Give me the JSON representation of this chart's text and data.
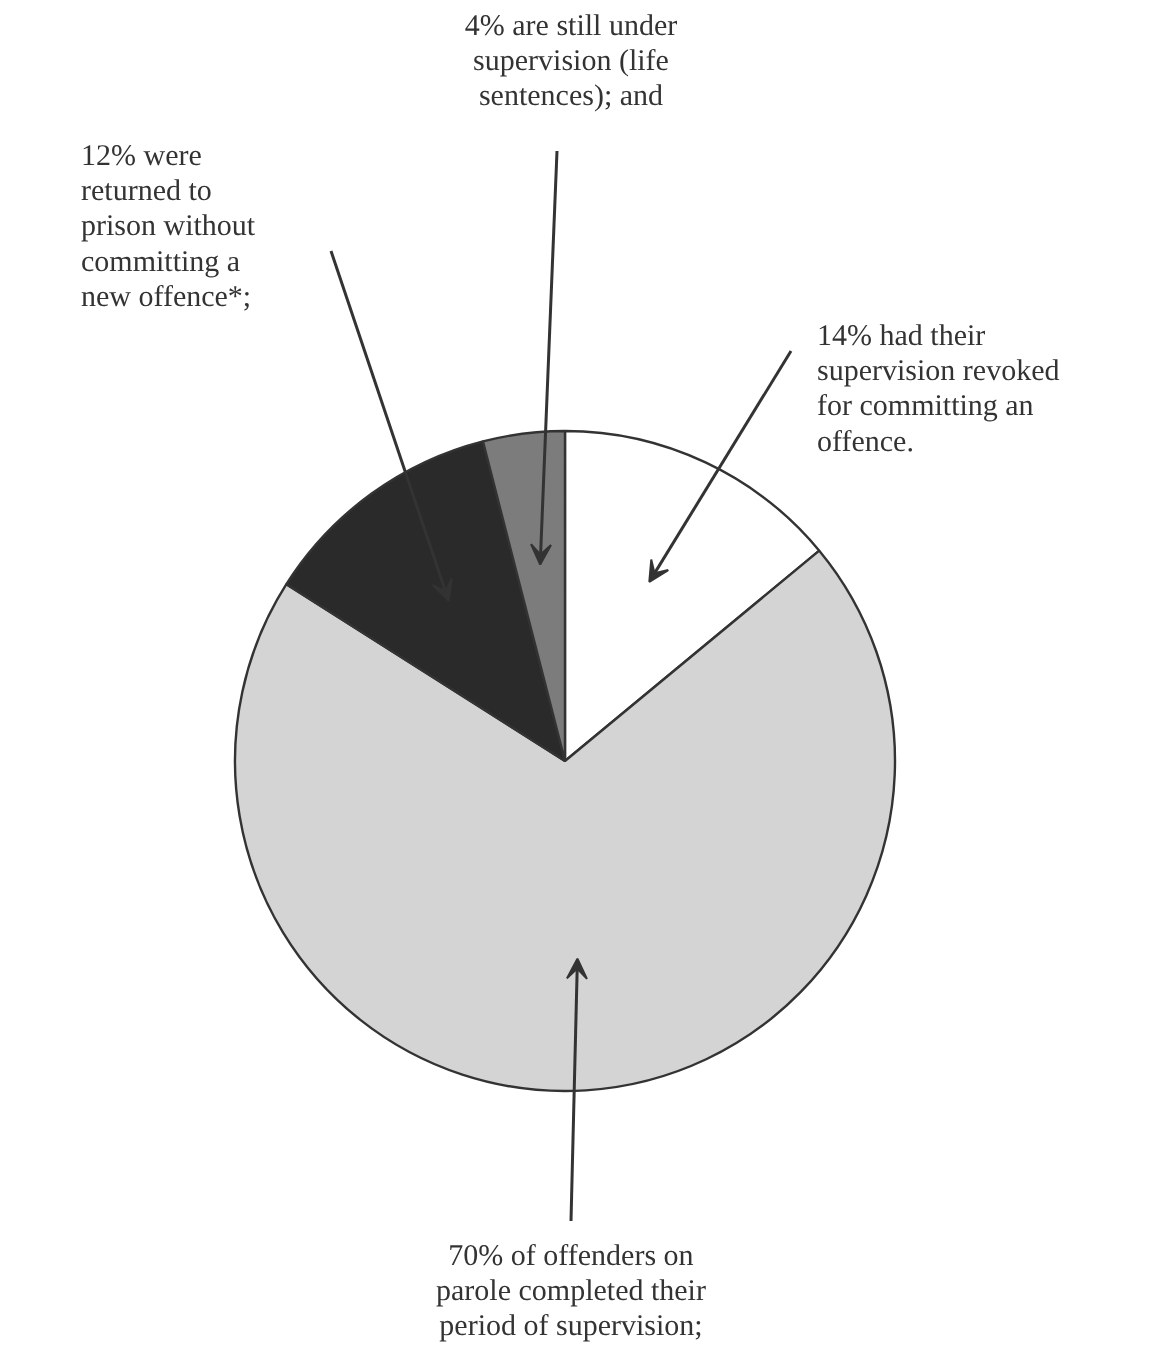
{
  "chart_data": {
    "type": "pie",
    "categories": [
      null,
      null,
      null,
      null
    ],
    "values": [
      14,
      70,
      12,
      4
    ],
    "colors": [
      "#ffffff",
      "#d4d4d4",
      "#2a2a2a",
      "#7c7c7c"
    ],
    "annotations": [
      "14% had their\nsupervision revoked\nfor committing an\noffence.",
      "70% of offenders on\nparole completed their\nperiod of supervision;",
      "12% were\nreturned to\nprison without\ncommitting a\nnew offence*;",
      "4% are still under\nsupervision (life\nsentences); and"
    ]
  }
}
